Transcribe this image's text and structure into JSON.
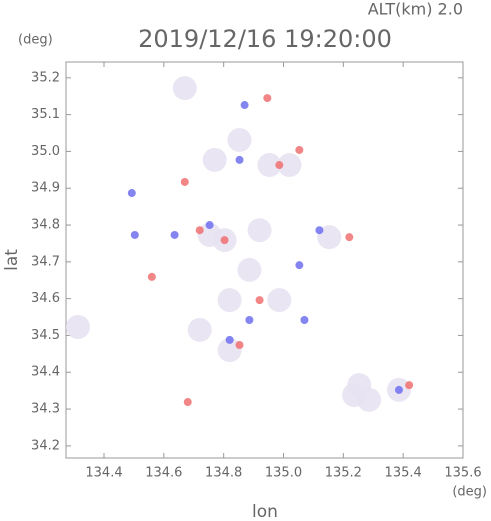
{
  "chart_data": {
    "type": "scatter",
    "header": "ALT(km) 2.0",
    "title": "2019/12/16 19:20:00",
    "y_unit": "(deg)",
    "x_unit": "(deg)",
    "y_label": "lat",
    "x_label": "lon",
    "xlim": [
      134.273,
      135.6
    ],
    "ylim": [
      34.167,
      35.243
    ],
    "xticks": [
      134.4,
      134.6,
      134.8,
      {
        "value": 135,
        "label": "135.0"
      },
      135.2,
      135.4,
      135.6
    ],
    "yticks": [
      34.2,
      34.3,
      34.4,
      34.5,
      34.6,
      34.7,
      34.8,
      34.9,
      {
        "value": 35,
        "label": "35.0"
      },
      35.1,
      35.2
    ],
    "series": [
      {
        "color": "#e8e2f2",
        "x": [
          134.67,
          134.853,
          134.953,
          134.753,
          134.803,
          134.92,
          135.153,
          134.886,
          134.82,
          134.986,
          134.72,
          134.82,
          134.313,
          135.236,
          135.286,
          135.386,
          135.253,
          134.77,
          135.02
        ],
        "y": [
          35.172,
          35.031,
          34.963,
          34.773,
          34.759,
          34.786,
          34.767,
          34.678,
          34.596,
          34.596,
          34.515,
          34.46,
          34.523,
          34.338,
          34.325,
          34.352,
          34.365,
          34.977,
          34.963
        ]
      },
      {
        "color": "#7070f0",
        "x": [
          134.87,
          134.493,
          134.503,
          134.753,
          135.053,
          134.886,
          134.82,
          135.07,
          134.636,
          135.386,
          134.853,
          135.12
        ],
        "y": [
          35.126,
          34.887,
          34.773,
          34.8,
          34.691,
          34.542,
          34.488,
          34.542,
          34.773,
          34.352,
          34.977,
          34.786
        ]
      },
      {
        "color": "#f07070",
        "x": [
          134.946,
          135.053,
          134.67,
          134.56,
          134.803,
          134.986,
          134.853,
          135.42,
          135.22,
          134.68,
          134.72,
          134.92
        ],
        "y": [
          35.145,
          35.004,
          34.917,
          34.659,
          34.759,
          34.963,
          34.474,
          34.365,
          34.767,
          34.319,
          34.786,
          34.596
        ]
      }
    ]
  }
}
